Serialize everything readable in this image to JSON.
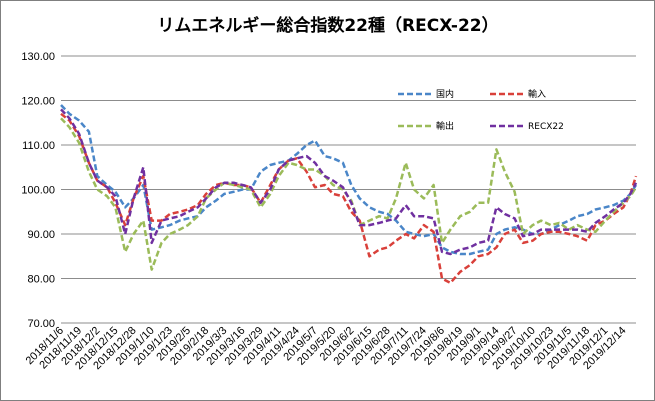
{
  "chart_data": {
    "type": "line",
    "title": "リムエネルギー総合指数22種（RECX-22）",
    "xlabel": "",
    "ylabel": "",
    "ylim": [
      70,
      130
    ],
    "y_ticks": [
      "70.00",
      "80.00",
      "90.00",
      "100.00",
      "110.00",
      "120.00",
      "130.00"
    ],
    "x_tick_labels": [
      "2018/11/6",
      "2018/11/19",
      "2018/12/2",
      "2018/12/15",
      "2018/12/28",
      "2019/1/10",
      "2019/1/23",
      "2019/2/5",
      "2019/2/18",
      "2019/3/3",
      "2019/3/16",
      "2019/3/29",
      "2019/4/11",
      "2019/4/24",
      "2019/5/7",
      "2019/5/20",
      "2019/6/2",
      "2019/6/15",
      "2019/6/28",
      "2019/7/11",
      "2019/7/24",
      "2019/8/6",
      "2019/8/19",
      "2019/9/1",
      "2019/9/14",
      "2019/9/27",
      "2019/10/10",
      "2019/10/23",
      "2019/11/5",
      "2019/11/18",
      "2019/12/1",
      "2019/12/14"
    ],
    "x_start": "2018/11/6",
    "x_end": "2019/12/23",
    "grid": "horizontal",
    "legend_position": "top-right",
    "series": [
      {
        "name": "国内",
        "color": "#4a86c8",
        "points": [
          [
            "2018/11/6",
            119
          ],
          [
            "2018/11/12",
            117
          ],
          [
            "2018/11/19",
            115.5
          ],
          [
            "2018/11/26",
            113
          ],
          [
            "2018/12/2",
            103
          ],
          [
            "2018/12/9",
            101
          ],
          [
            "2018/12/15",
            99.5
          ],
          [
            "2018/12/22",
            96
          ],
          [
            "2018/12/28",
            98
          ],
          [
            "2019/1/4",
            101
          ],
          [
            "2019/1/10",
            91
          ],
          [
            "2019/1/17",
            91.5
          ],
          [
            "2019/1/23",
            92
          ],
          [
            "2019/1/30",
            93
          ],
          [
            "2019/2/5",
            93.5
          ],
          [
            "2019/2/12",
            94
          ],
          [
            "2019/2/18",
            96
          ],
          [
            "2019/2/25",
            97.5
          ],
          [
            "2019/3/3",
            99
          ],
          [
            "2019/3/10",
            99.5
          ],
          [
            "2019/3/16",
            100
          ],
          [
            "2019/3/22",
            100
          ],
          [
            "2019/3/29",
            104
          ],
          [
            "2019/4/5",
            105.5
          ],
          [
            "2019/4/11",
            106
          ],
          [
            "2019/4/18",
            106.5
          ],
          [
            "2019/4/24",
            108
          ],
          [
            "2019/5/1",
            110
          ],
          [
            "2019/5/7",
            111
          ],
          [
            "2019/5/14",
            107.5
          ],
          [
            "2019/5/20",
            107
          ],
          [
            "2019/5/27",
            106
          ],
          [
            "2019/6/2",
            101
          ],
          [
            "2019/6/8",
            98
          ],
          [
            "2019/6/15",
            96
          ],
          [
            "2019/6/22",
            95
          ],
          [
            "2019/6/28",
            94.5
          ],
          [
            "2019/7/4",
            93
          ],
          [
            "2019/7/11",
            90.5
          ],
          [
            "2019/7/17",
            90
          ],
          [
            "2019/7/24",
            89.5
          ],
          [
            "2019/7/31",
            90
          ],
          [
            "2019/8/6",
            87
          ],
          [
            "2019/8/12",
            86
          ],
          [
            "2019/8/19",
            85.5
          ],
          [
            "2019/8/26",
            85.5
          ],
          [
            "2019/9/1",
            86
          ],
          [
            "2019/9/8",
            86.5
          ],
          [
            "2019/9/14",
            90
          ],
          [
            "2019/9/20",
            91
          ],
          [
            "2019/9/27",
            91.5
          ],
          [
            "2019/10/3",
            91
          ],
          [
            "2019/10/10",
            90
          ],
          [
            "2019/10/16",
            90
          ],
          [
            "2019/10/23",
            91
          ],
          [
            "2019/10/29",
            92
          ],
          [
            "2019/11/5",
            93
          ],
          [
            "2019/11/11",
            94
          ],
          [
            "2019/11/18",
            94.5
          ],
          [
            "2019/11/24",
            95.5
          ],
          [
            "2019/12/1",
            96
          ],
          [
            "2019/12/7",
            96.5
          ],
          [
            "2019/12/14",
            97.5
          ],
          [
            "2019/12/19",
            99
          ],
          [
            "2019/12/23",
            101
          ]
        ]
      },
      {
        "name": "輸入",
        "color": "#d9403a",
        "points": [
          [
            "2018/11/6",
            117
          ],
          [
            "2018/11/12",
            115.5
          ],
          [
            "2018/11/19",
            112
          ],
          [
            "2018/11/26",
            106
          ],
          [
            "2018/12/2",
            102
          ],
          [
            "2018/12/9",
            100.5
          ],
          [
            "2018/12/15",
            97
          ],
          [
            "2018/12/22",
            92
          ],
          [
            "2018/12/28",
            98
          ],
          [
            "2019/1/4",
            103
          ],
          [
            "2019/1/10",
            93
          ],
          [
            "2019/1/17",
            93
          ],
          [
            "2019/1/23",
            94.5
          ],
          [
            "2019/1/30",
            95
          ],
          [
            "2019/2/5",
            95.5
          ],
          [
            "2019/2/12",
            96.5
          ],
          [
            "2019/2/18",
            99
          ],
          [
            "2019/2/25",
            101
          ],
          [
            "2019/3/3",
            101.5
          ],
          [
            "2019/3/10",
            101
          ],
          [
            "2019/3/16",
            101
          ],
          [
            "2019/3/22",
            100.5
          ],
          [
            "2019/3/29",
            97
          ],
          [
            "2019/4/5",
            101
          ],
          [
            "2019/4/11",
            104.5
          ],
          [
            "2019/4/18",
            106.5
          ],
          [
            "2019/4/24",
            107
          ],
          [
            "2019/5/1",
            104
          ],
          [
            "2019/5/7",
            100.5
          ],
          [
            "2019/5/14",
            101
          ],
          [
            "2019/5/20",
            99
          ],
          [
            "2019/5/27",
            98.5
          ],
          [
            "2019/6/2",
            95
          ],
          [
            "2019/6/8",
            93
          ],
          [
            "2019/6/15",
            85
          ],
          [
            "2019/6/22",
            86.5
          ],
          [
            "2019/6/28",
            87
          ],
          [
            "2019/7/4",
            88.5
          ],
          [
            "2019/7/11",
            90
          ],
          [
            "2019/7/17",
            89
          ],
          [
            "2019/7/24",
            92
          ],
          [
            "2019/7/31",
            90.5
          ],
          [
            "2019/8/6",
            80
          ],
          [
            "2019/8/12",
            79
          ],
          [
            "2019/8/19",
            81.5
          ],
          [
            "2019/8/26",
            83
          ],
          [
            "2019/9/1",
            85
          ],
          [
            "2019/9/8",
            85.5
          ],
          [
            "2019/9/14",
            87
          ],
          [
            "2019/9/20",
            90
          ],
          [
            "2019/9/27",
            91
          ],
          [
            "2019/10/3",
            88
          ],
          [
            "2019/10/10",
            88.5
          ],
          [
            "2019/10/16",
            90
          ],
          [
            "2019/10/23",
            90.5
          ],
          [
            "2019/10/29",
            90.5
          ],
          [
            "2019/11/5",
            90
          ],
          [
            "2019/11/11",
            89.5
          ],
          [
            "2019/11/18",
            88.5
          ],
          [
            "2019/11/24",
            92
          ],
          [
            "2019/12/1",
            93
          ],
          [
            "2019/12/7",
            94.5
          ],
          [
            "2019/12/14",
            96
          ],
          [
            "2019/12/19",
            99
          ],
          [
            "2019/12/23",
            103
          ]
        ]
      },
      {
        "name": "輸出",
        "color": "#9bbb59",
        "points": [
          [
            "2018/11/6",
            116
          ],
          [
            "2018/11/12",
            114
          ],
          [
            "2018/11/19",
            110.5
          ],
          [
            "2018/11/26",
            104
          ],
          [
            "2018/12/2",
            100
          ],
          [
            "2018/12/9",
            98.5
          ],
          [
            "2018/12/15",
            96
          ],
          [
            "2018/12/22",
            86
          ],
          [
            "2018/12/28",
            90
          ],
          [
            "2019/1/4",
            93
          ],
          [
            "2019/1/10",
            82
          ],
          [
            "2019/1/17",
            88
          ],
          [
            "2019/1/23",
            90
          ],
          [
            "2019/1/30",
            91
          ],
          [
            "2019/2/5",
            92
          ],
          [
            "2019/2/12",
            94
          ],
          [
            "2019/2/18",
            98
          ],
          [
            "2019/2/25",
            100
          ],
          [
            "2019/3/3",
            101.5
          ],
          [
            "2019/3/10",
            101
          ],
          [
            "2019/3/16",
            100.5
          ],
          [
            "2019/3/22",
            100
          ],
          [
            "2019/3/29",
            96
          ],
          [
            "2019/4/5",
            99
          ],
          [
            "2019/4/11",
            103
          ],
          [
            "2019/4/18",
            106
          ],
          [
            "2019/4/24",
            105.5
          ],
          [
            "2019/5/1",
            104.5
          ],
          [
            "2019/5/7",
            104.5
          ],
          [
            "2019/5/14",
            103
          ],
          [
            "2019/5/20",
            101
          ],
          [
            "2019/5/27",
            100
          ],
          [
            "2019/6/2",
            97.5
          ],
          [
            "2019/6/8",
            92
          ],
          [
            "2019/6/15",
            93
          ],
          [
            "2019/6/22",
            94
          ],
          [
            "2019/6/28",
            93.5
          ],
          [
            "2019/7/4",
            98
          ],
          [
            "2019/7/11",
            106
          ],
          [
            "2019/7/17",
            100
          ],
          [
            "2019/7/24",
            98
          ],
          [
            "2019/7/31",
            101
          ],
          [
            "2019/8/6",
            88
          ],
          [
            "2019/8/12",
            91
          ],
          [
            "2019/8/19",
            94
          ],
          [
            "2019/8/26",
            95
          ],
          [
            "2019/9/1",
            97
          ],
          [
            "2019/9/8",
            97
          ],
          [
            "2019/9/14",
            109
          ],
          [
            "2019/9/20",
            104
          ],
          [
            "2019/9/27",
            99.5
          ],
          [
            "2019/10/3",
            90
          ],
          [
            "2019/10/10",
            92
          ],
          [
            "2019/10/16",
            93
          ],
          [
            "2019/10/23",
            92
          ],
          [
            "2019/10/29",
            92.5
          ],
          [
            "2019/11/5",
            91
          ],
          [
            "2019/11/11",
            92
          ],
          [
            "2019/11/18",
            91
          ],
          [
            "2019/11/24",
            90.5
          ],
          [
            "2019/12/1",
            93
          ],
          [
            "2019/12/7",
            95
          ],
          [
            "2019/12/14",
            97
          ],
          [
            "2019/12/19",
            98.5
          ],
          [
            "2019/12/23",
            100.5
          ]
        ]
      },
      {
        "name": "RECX22",
        "color": "#7030a0",
        "points": [
          [
            "2018/11/6",
            118
          ],
          [
            "2018/11/12",
            116
          ],
          [
            "2018/11/19",
            112.5
          ],
          [
            "2018/11/26",
            106
          ],
          [
            "2018/12/2",
            102
          ],
          [
            "2018/12/9",
            100.5
          ],
          [
            "2018/12/15",
            98.5
          ],
          [
            "2018/12/22",
            90
          ],
          [
            "2018/12/28",
            98
          ],
          [
            "2019/1/4",
            105
          ],
          [
            "2019/1/10",
            88
          ],
          [
            "2019/1/17",
            93
          ],
          [
            "2019/1/23",
            93.5
          ],
          [
            "2019/1/30",
            94
          ],
          [
            "2019/2/5",
            95
          ],
          [
            "2019/2/12",
            96
          ],
          [
            "2019/2/18",
            98
          ],
          [
            "2019/2/25",
            100.5
          ],
          [
            "2019/3/3",
            101.5
          ],
          [
            "2019/3/10",
            101.5
          ],
          [
            "2019/3/16",
            101
          ],
          [
            "2019/3/22",
            100.5
          ],
          [
            "2019/3/29",
            97
          ],
          [
            "2019/4/5",
            100
          ],
          [
            "2019/4/11",
            104.5
          ],
          [
            "2019/4/18",
            106.5
          ],
          [
            "2019/4/24",
            107
          ],
          [
            "2019/5/1",
            107.5
          ],
          [
            "2019/5/7",
            106
          ],
          [
            "2019/5/14",
            103
          ],
          [
            "2019/5/20",
            102
          ],
          [
            "2019/5/27",
            100.5
          ],
          [
            "2019/6/2",
            97
          ],
          [
            "2019/6/8",
            92
          ],
          [
            "2019/6/15",
            92
          ],
          [
            "2019/6/22",
            92.5
          ],
          [
            "2019/6/28",
            93
          ],
          [
            "2019/7/4",
            93.5
          ],
          [
            "2019/7/11",
            96.5
          ],
          [
            "2019/7/17",
            94
          ],
          [
            "2019/7/24",
            94
          ],
          [
            "2019/7/31",
            93.5
          ],
          [
            "2019/8/6",
            86
          ],
          [
            "2019/8/12",
            85.5
          ],
          [
            "2019/8/19",
            86.5
          ],
          [
            "2019/8/26",
            87
          ],
          [
            "2019/9/1",
            88
          ],
          [
            "2019/9/8",
            88.5
          ],
          [
            "2019/9/14",
            96
          ],
          [
            "2019/9/20",
            94.5
          ],
          [
            "2019/9/27",
            93.5
          ],
          [
            "2019/10/3",
            89.5
          ],
          [
            "2019/10/10",
            90
          ],
          [
            "2019/10/16",
            91
          ],
          [
            "2019/10/23",
            91
          ],
          [
            "2019/10/29",
            91
          ],
          [
            "2019/11/5",
            91
          ],
          [
            "2019/11/11",
            91
          ],
          [
            "2019/11/18",
            90.5
          ],
          [
            "2019/11/24",
            92.5
          ],
          [
            "2019/12/1",
            94
          ],
          [
            "2019/12/7",
            95.5
          ],
          [
            "2019/12/14",
            97
          ],
          [
            "2019/12/19",
            99
          ],
          [
            "2019/12/23",
            101.5
          ]
        ]
      }
    ]
  }
}
